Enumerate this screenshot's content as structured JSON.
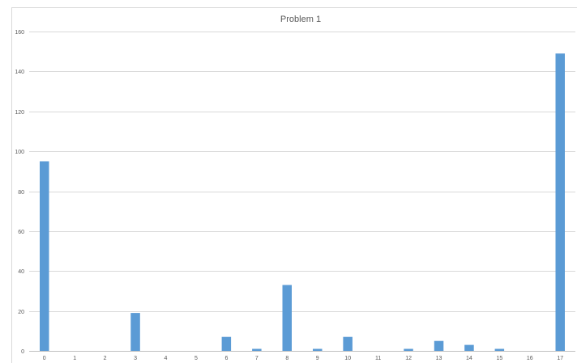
{
  "chart_data": {
    "type": "bar",
    "title": "Problem 1",
    "xlabel": "",
    "ylabel": "",
    "categories": [
      "0",
      "1",
      "2",
      "3",
      "4",
      "5",
      "6",
      "7",
      "8",
      "9",
      "10",
      "11",
      "12",
      "13",
      "14",
      "15",
      "16",
      "17"
    ],
    "values": [
      95,
      0,
      0,
      19,
      0,
      0,
      7,
      1,
      33,
      1,
      7,
      0,
      1,
      5,
      3,
      1,
      0,
      149
    ],
    "ylim": [
      0,
      160
    ],
    "yticks": [
      0,
      20,
      40,
      60,
      80,
      100,
      120,
      140,
      160
    ],
    "grid": true,
    "legend": "none",
    "bar_color": "#5b9bd5"
  }
}
